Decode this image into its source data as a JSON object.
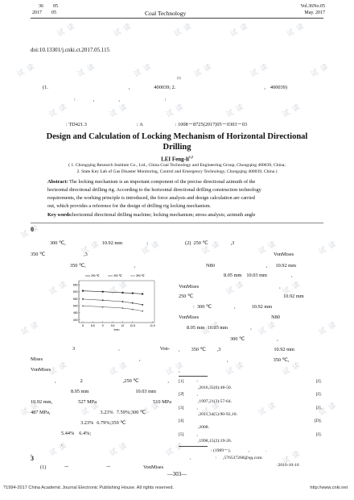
{
  "header": {
    "left_top": "36",
    "left_top2": "05",
    "left_bottom": "2017",
    "left_bottom2": "05",
    "center": "Coal Technology",
    "right_top": "Vol.36No.05",
    "right_bottom": "May. 2017"
  },
  "doi": "doi:10.13301/j.cnki.ct.2017.05.115",
  "cn_block": {
    "sup_mark": "(1)",
    "aff_line": [
      "(1.",
      ",",
      "400039; 2.",
      ",",
      "400039)"
    ],
    "abstract_line": [
      ":",
      ",",
      ",",
      ":"
    ],
    "class_line": [
      ":",
      "TD421.3",
      ":",
      "A",
      ":",
      "1008－8725(2017)05－0303－03"
    ]
  },
  "title": "Design and Calculation of Locking Mechanism of Horizontal Directional Drilling",
  "author": "LEI Feng-li",
  "author_sup": "1,2",
  "affiliations": [
    "( 1. Chongqing Research Institute Co., Ltd., China Coal Technology and Engineering Group, Chongqing 400039, China;",
    "2. State Key Lab of Gas Disaster Monitoring, Control and Emergency Technology, Chongqing 400039, China )"
  ],
  "abstract": {
    "label": "Abstract:",
    "lines": [
      "The locking mechanism is an important component of the precise directional azimuth of the",
      "horizontal directional drilling rig. According to the horizontal directional drilling construction technology",
      "requirements, the working principle is introduced, the force analysis and design calculation are carried",
      "out, which provides a reference for the design of drilling rig locking mechanism."
    ]
  },
  "keywords": {
    "label": "Key words:",
    "text": "horizontal directional drilling machine; locking mechanism; stress analysis; azimuth angle"
  },
  "section_zero": "0",
  "left_col": {
    "l1": [
      "300 ℃,",
      "10.92 mm",
      ";"
    ],
    "l2": [
      "350 ℃",
      ",3"
    ],
    "l3": [
      "350 ℃,",
      ","
    ],
    "l4": [
      "3",
      ",",
      "Von-"
    ],
    "l5": [
      "Mises",
      ","
    ],
    "l6": [
      "VonMises"
    ],
    "l7": [
      ",",
      "2",
      ",250 ℃",
      ","
    ],
    "l8": [
      "8.05 mm",
      "10.03 mm",
      ","
    ],
    "l9": [
      "10.92 mm,",
      "527 MPa",
      "510 MPa"
    ],
    "l10": [
      "487 MPa,",
      "3.23%",
      "7.59%;300 ℃"
    ],
    "l11": [
      "3.23%",
      "6.79%;350 ℃"
    ],
    "l12": [
      "5.44%",
      "6.4%;"
    ],
    "l13": [
      ","
    ],
    "l14": [
      ","
    ]
  },
  "section_three": "3",
  "left_bottom_line": [
    "(1)",
    "－",
    "－",
    "VonMises"
  ],
  "chart_data": {
    "type": "line",
    "title": "",
    "xlabel": "Imm",
    "ylabel": "",
    "x": [
      8,
      9,
      10,
      10.5,
      11
    ],
    "x_ticks": [
      "8",
      "8.5",
      "9",
      "9.5",
      "10",
      "10.5",
      "11.5"
    ],
    "y_ticks": [
      "650",
      "600",
      "550",
      "500",
      "450",
      "400"
    ],
    "ylim": [
      380,
      680
    ],
    "legend_position": "top",
    "series": [
      {
        "name": "250 ℃",
        "values": [
          607,
          601,
          594,
          590,
          585
        ]
      },
      {
        "name": "300 ℃",
        "values": [
          548,
          540,
          530,
          520,
          508
        ]
      },
      {
        "name": "350 ℃",
        "values": [
          500,
          492,
          484,
          475,
          463
        ]
      }
    ],
    "colors": [
      "#222222",
      "#444444",
      "#666666"
    ]
  },
  "right_col": {
    "r1": [
      "(2)",
      "250 ℃",
      ",3"
    ],
    "r2": [
      "VonMises"
    ],
    "r3": [
      "N80",
      ",",
      "10.92 mm"
    ],
    "r4": [
      "8.05 mm",
      "10.03 mm",
      ","
    ],
    "r5": [
      "VonMises",
      ","
    ],
    "r6": [
      "250 ℃",
      "10.92 mm"
    ],
    "r7": [
      ":",
      "300 ℃",
      ",",
      "10.92 mm"
    ],
    "r8": [
      "VonMises",
      "N80"
    ],
    "r9": [
      "8.05 mm",
      "10.03 mm",
      ","
    ],
    "r10": [
      "300 ℃",
      ","
    ],
    "r11": [
      ",",
      "350 ℃",
      ",3",
      "10.92 mm"
    ],
    "r12": [
      ",",
      "350 ℃,"
    ],
    "r13": [
      ","
    ]
  },
  "references": [
    {
      "num": "[1]",
      "text": "-",
      "tag": "[J]."
    },
    {
      "num": "",
      "text": ",2016,35(6):48-50.",
      "tag": ""
    },
    {
      "num": "[2]",
      "text": ",",
      "tag": "[J]."
    },
    {
      "num": "",
      "text": ",1997,21(3):57-64.",
      "tag": ""
    },
    {
      "num": "[3]",
      "text": ",",
      "tag": "[J]."
    },
    {
      "num": "",
      "text": ",2011,34(5):90-92,10.",
      "tag": ""
    },
    {
      "num": "[4]",
      "text": "",
      "tag": "[D]."
    },
    {
      "num": "",
      "text": ",2008.",
      "tag": ""
    },
    {
      "num": "[5]",
      "text": ",",
      "tag": "[J]."
    },
    {
      "num": "",
      "text": ",1998,15(2):19-26.",
      "tag": ""
    }
  ],
  "author_note": [
    ": (1989－),",
    ",",
    "."
  ],
  "author_note2": [
    ",",
    ":",
    ",576537268@qq.com."
  ],
  "received": ":2016-10-16",
  "page_number": "—303—",
  "footer": "?1994-2017 China Academic Journal Electronic Publishing House. All rights reserved.",
  "footer_url": "http://www.cnki.net",
  "watermark": "试 读"
}
